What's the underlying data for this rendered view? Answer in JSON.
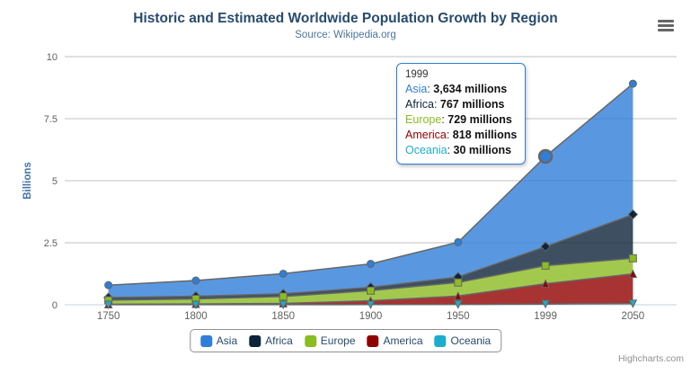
{
  "header": {
    "title": "Historic and Estimated Worldwide Population Growth by Region",
    "subtitle": "Source: Wikipedia.org"
  },
  "icons": {
    "export_menu": "hamburger"
  },
  "chart_data": {
    "type": "area",
    "stacking": "normal",
    "title": "Historic and Estimated Worldwide Population Growth by Region",
    "subtitle": "Source: Wikipedia.org",
    "categories": [
      "1750",
      "1800",
      "1850",
      "1900",
      "1950",
      "1999",
      "2050"
    ],
    "series": [
      {
        "name": "Asia",
        "color": "#2f7ed8",
        "marker": "circle",
        "values": [
          502,
          635,
          809,
          947,
          1402,
          3634,
          5268
        ]
      },
      {
        "name": "Africa",
        "color": "#0d233a",
        "marker": "diamond",
        "values": [
          106,
          107,
          111,
          133,
          221,
          767,
          1766
        ]
      },
      {
        "name": "Europe",
        "color": "#8bbc21",
        "marker": "square",
        "values": [
          163,
          203,
          276,
          408,
          547,
          729,
          628
        ]
      },
      {
        "name": "America",
        "color": "#910000",
        "marker": "triangle",
        "values": [
          18,
          31,
          54,
          156,
          339,
          818,
          1201
        ]
      },
      {
        "name": "Oceania",
        "color": "#1aadce",
        "marker": "triangle-down",
        "values": [
          2,
          2,
          2,
          6,
          13,
          30,
          46
        ]
      }
    ],
    "values_unit": "millions",
    "xlabel": "",
    "ylabel": "Billions",
    "ylim": [
      0,
      10
    ],
    "yticks": [
      0,
      2.5,
      5,
      7.5,
      10
    ],
    "grid": true,
    "legend_position": "bottom",
    "hover": {
      "series": "Asia",
      "category": "1999"
    },
    "style": {
      "line_color": "#666666",
      "grid_color": "#C0C0C0",
      "axis_line_color": "#C0D0E0",
      "label_color": "#606060",
      "fill_opacity": 0.8
    }
  },
  "tooltip": {
    "header": "1999",
    "rows": [
      {
        "label": "Asia",
        "value": "3,634 millions"
      },
      {
        "label": "Africa",
        "value": "767 millions"
      },
      {
        "label": "Europe",
        "value": "729 millions"
      },
      {
        "label": "America",
        "value": "818 millions"
      },
      {
        "label": "Oceania",
        "value": "30 millions"
      }
    ]
  },
  "legend": {
    "items": [
      {
        "label": "Asia"
      },
      {
        "label": "Africa"
      },
      {
        "label": "Europe"
      },
      {
        "label": "America"
      },
      {
        "label": "Oceania"
      }
    ]
  },
  "footer": {
    "credits": "Highcharts.com"
  }
}
